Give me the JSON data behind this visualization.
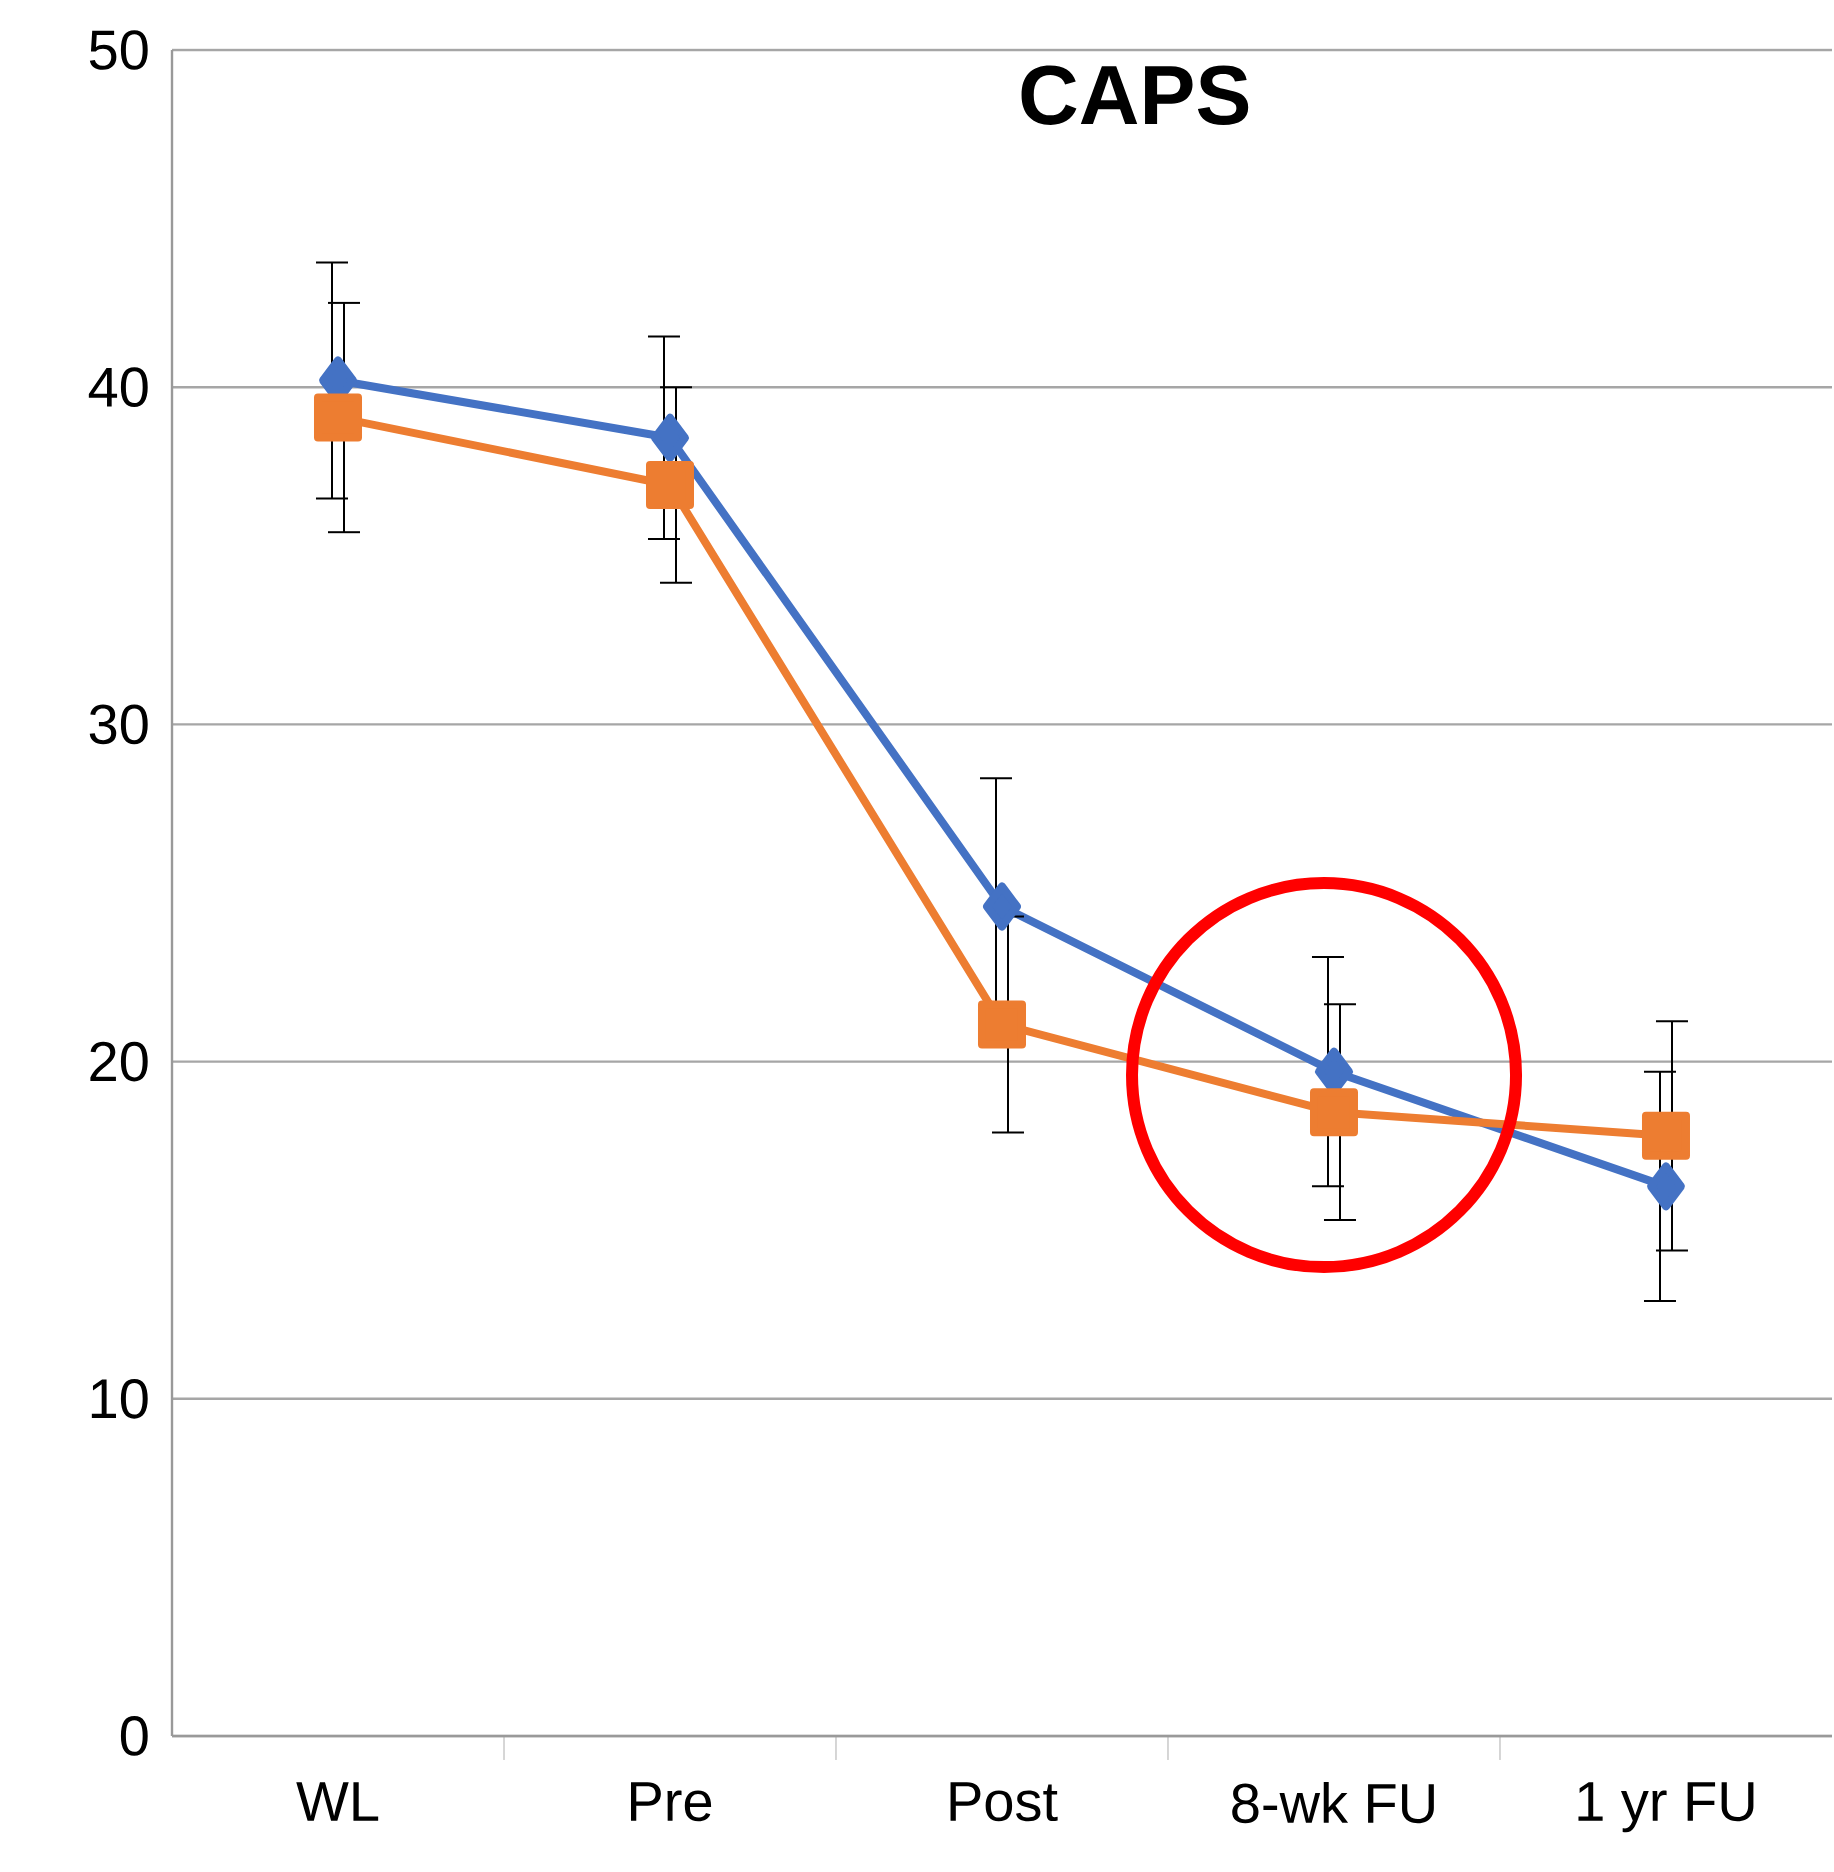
{
  "chart_data": {
    "type": "line",
    "title": "CAPS",
    "categories": [
      "WL",
      "Pre",
      "Post",
      "8-wk FU",
      "1 yr FU"
    ],
    "series": [
      {
        "color": "#4472c4",
        "marker": "diamond",
        "values": [
          40.2,
          38.5,
          24.6,
          19.7,
          16.3
        ],
        "errors": [
          3.5,
          3.0,
          3.8,
          3.4,
          3.4
        ]
      },
      {
        "color": "#ed7d31",
        "marker": "square",
        "values": [
          39.1,
          37.1,
          21.1,
          18.5,
          17.8
        ],
        "errors": [
          3.4,
          2.9,
          3.2,
          3.2,
          3.4
        ]
      }
    ],
    "ylim": [
      0,
      50
    ],
    "yticks": [
      0,
      10,
      20,
      30,
      40,
      50
    ],
    "grid": "y"
  }
}
